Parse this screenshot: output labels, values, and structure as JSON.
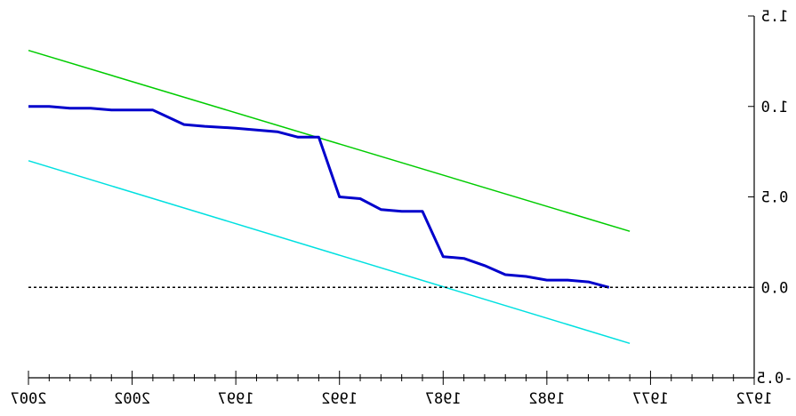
{
  "chart_data": {
    "type": "line",
    "title": "",
    "xlabel": "",
    "ylabel": "",
    "x_reversed": true,
    "mirrored_text": true,
    "xlim": [
      1972,
      2007
    ],
    "ylim": [
      -0.5,
      1.5
    ],
    "x_ticks": [
      2007,
      2002,
      1997,
      1992,
      1987,
      1982,
      1977,
      1972
    ],
    "x_tick_labels": [
      "2007",
      "2002",
      "1997",
      "1992",
      "1987",
      "1982",
      "1977",
      "1972"
    ],
    "y_ticks": [
      1.5,
      1.0,
      0.5,
      0.0,
      -0.5
    ],
    "y_tick_labels": [
      "1.5",
      "1.0",
      "0.5",
      "0.0",
      "-0.5"
    ],
    "grid": false,
    "series": [
      {
        "color": "#00cc00",
        "x": [
          2007,
          1978
        ],
        "y": [
          1.31,
          0.31
        ]
      },
      {
        "color": "#0000cc",
        "x": [
          2007,
          2006,
          2005,
          2004,
          2003,
          2002,
          2001,
          1999.5,
          1998.5,
          1997,
          1996,
          1995,
          1994,
          1993.5,
          1993,
          1992,
          1991,
          1990,
          1989,
          1988,
          1987,
          1986,
          1985,
          1984,
          1983,
          1982,
          1981,
          1980,
          1979
        ],
        "y": [
          1.0,
          1.0,
          0.99,
          0.99,
          0.98,
          0.98,
          0.98,
          0.9,
          0.89,
          0.88,
          0.87,
          0.86,
          0.83,
          0.83,
          0.83,
          0.5,
          0.49,
          0.43,
          0.42,
          0.42,
          0.17,
          0.16,
          0.12,
          0.07,
          0.06,
          0.04,
          0.04,
          0.03,
          0.0
        ]
      },
      {
        "color": "#00e0e0",
        "x": [
          2007,
          1978
        ],
        "y": [
          0.7,
          -0.31
        ]
      },
      {
        "color": "#000000",
        "style": "dashed",
        "x": [
          2007,
          1972
        ],
        "y": [
          0.0,
          0.0
        ]
      }
    ]
  }
}
